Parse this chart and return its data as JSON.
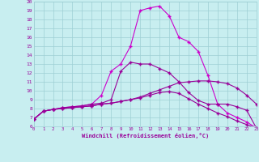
{
  "title": "",
  "xlabel": "Windchill (Refroidissement éolien,°C)",
  "xlim": [
    0,
    23
  ],
  "ylim": [
    6,
    20
  ],
  "xticks": [
    0,
    1,
    2,
    3,
    4,
    5,
    6,
    7,
    8,
    9,
    10,
    11,
    12,
    13,
    14,
    15,
    16,
    17,
    18,
    19,
    20,
    21,
    22,
    23
  ],
  "yticks": [
    6,
    7,
    8,
    9,
    10,
    11,
    12,
    13,
    14,
    15,
    16,
    17,
    18,
    19,
    20
  ],
  "bg_color": "#c8eef0",
  "grid_color": "#9ecfd4",
  "line_color": "#990099",
  "line_color2": "#cc00cc",
  "curve3_x": [
    0,
    1,
    2,
    3,
    4,
    5,
    6,
    7,
    8,
    9,
    10,
    11,
    12,
    13,
    14,
    15,
    16,
    17,
    18,
    19,
    20,
    21,
    22,
    23
  ],
  "curve3_y": [
    6.8,
    7.7,
    7.9,
    8.1,
    8.2,
    8.3,
    8.5,
    9.5,
    12.2,
    13.0,
    15.0,
    19.0,
    19.3,
    19.5,
    18.4,
    16.0,
    15.5,
    14.4,
    11.7,
    8.5,
    7.5,
    7.0,
    6.5,
    5.8
  ],
  "curve4_x": [
    0,
    1,
    2,
    3,
    4,
    5,
    6,
    7,
    8,
    9,
    10,
    11,
    12,
    13,
    14,
    15,
    16,
    17,
    18,
    19,
    20,
    21,
    22,
    23
  ],
  "curve4_y": [
    6.8,
    7.7,
    7.9,
    8.1,
    8.2,
    8.3,
    8.5,
    8.6,
    9.0,
    12.2,
    13.2,
    13.0,
    13.0,
    12.5,
    12.0,
    11.0,
    9.8,
    8.9,
    8.5,
    8.5,
    8.5,
    8.2,
    7.8,
    5.8
  ],
  "curve1_x": [
    0,
    1,
    2,
    3,
    4,
    5,
    6,
    7,
    8,
    9,
    10,
    11,
    12,
    13,
    14,
    15,
    16,
    17,
    18,
    19,
    20,
    21,
    22,
    23
  ],
  "curve1_y": [
    6.8,
    7.7,
    7.9,
    8.0,
    8.1,
    8.2,
    8.3,
    8.5,
    8.6,
    8.8,
    9.0,
    9.3,
    9.7,
    10.1,
    10.5,
    10.9,
    11.0,
    11.1,
    11.1,
    11.0,
    10.8,
    10.3,
    9.5,
    8.5
  ],
  "curve2_x": [
    0,
    1,
    2,
    3,
    4,
    5,
    6,
    7,
    8,
    9,
    10,
    11,
    12,
    13,
    14,
    15,
    16,
    17,
    18,
    19,
    20,
    21,
    22,
    23
  ],
  "curve2_y": [
    6.8,
    7.7,
    7.9,
    8.0,
    8.1,
    8.2,
    8.3,
    8.5,
    8.6,
    8.8,
    9.0,
    9.2,
    9.5,
    9.8,
    9.9,
    9.7,
    9.1,
    8.5,
    8.0,
    7.5,
    7.1,
    6.6,
    6.2,
    5.8
  ]
}
